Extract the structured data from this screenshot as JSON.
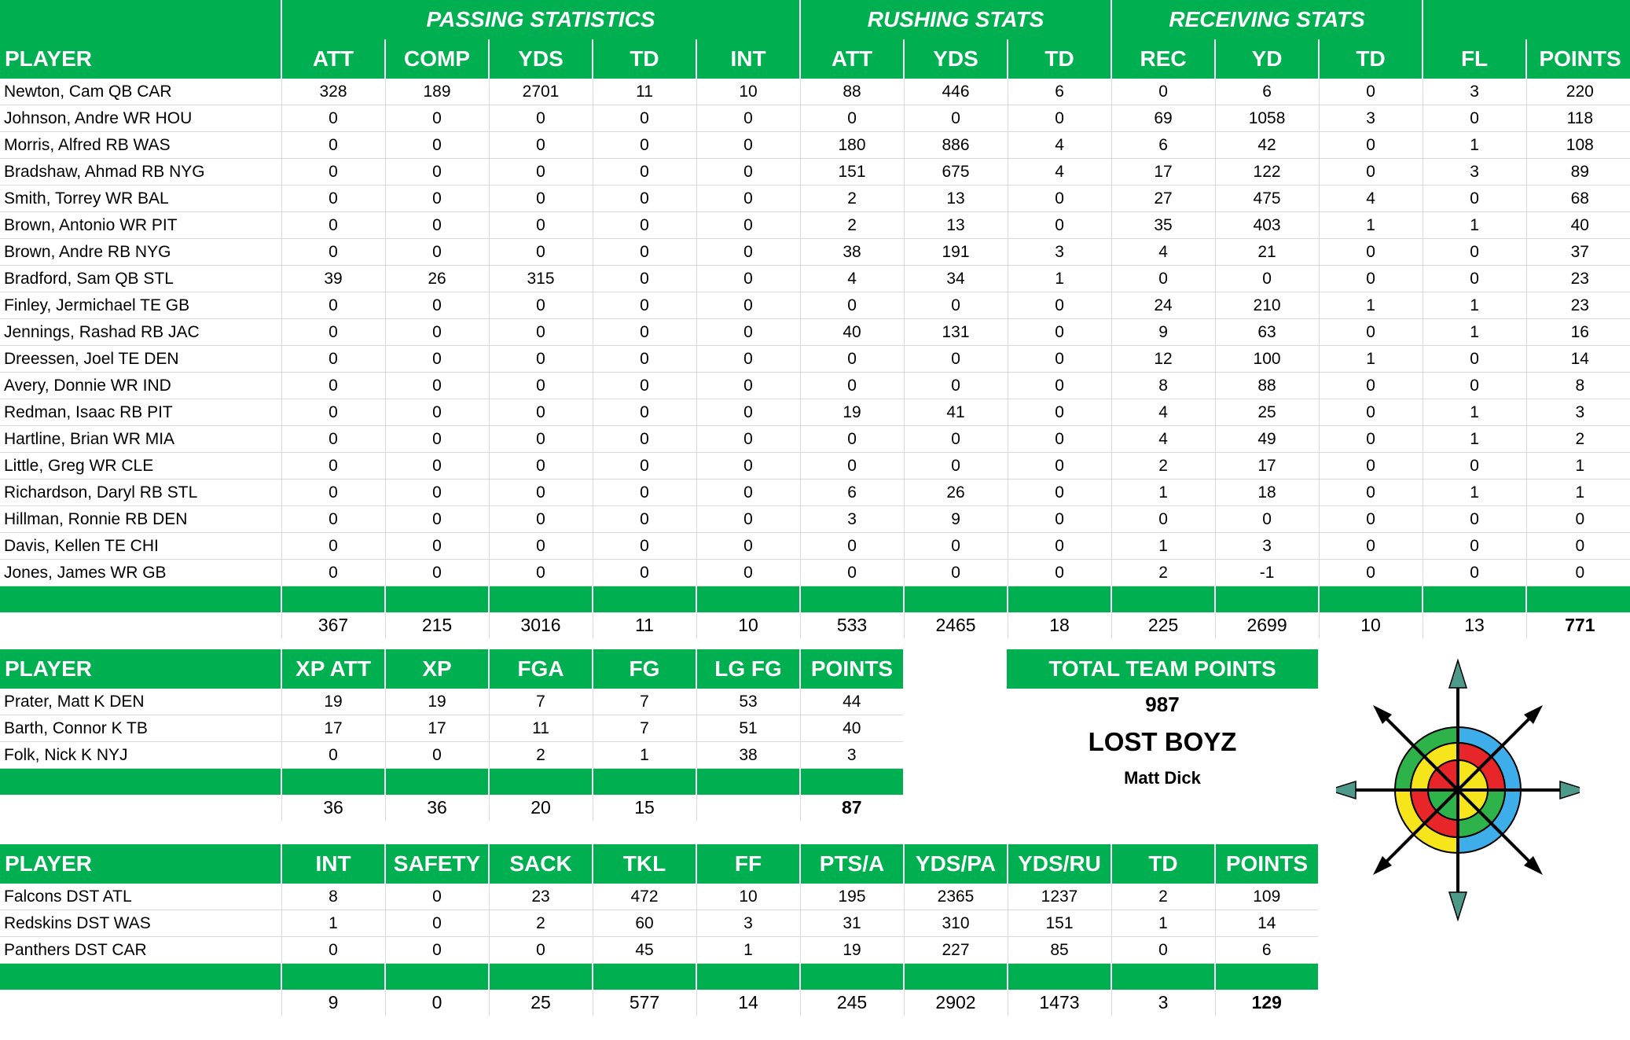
{
  "offense": {
    "section_titles": {
      "passing": "PASSING STATISTICS",
      "rushing": "RUSHING STATS",
      "receiving": "RECEIVING STATS"
    },
    "headers": [
      "PLAYER",
      "ATT",
      "COMP",
      "YDS",
      "TD",
      "INT",
      "ATT",
      "YDS",
      "TD",
      "REC",
      "YD",
      "TD",
      "FL",
      "POINTS"
    ],
    "rows": [
      [
        "Newton, Cam QB CAR",
        "328",
        "189",
        "2701",
        "11",
        "10",
        "88",
        "446",
        "6",
        "0",
        "6",
        "0",
        "3",
        "220"
      ],
      [
        "Johnson, Andre WR HOU",
        "0",
        "0",
        "0",
        "0",
        "0",
        "0",
        "0",
        "0",
        "69",
        "1058",
        "3",
        "0",
        "118"
      ],
      [
        "Morris, Alfred RB WAS",
        "0",
        "0",
        "0",
        "0",
        "0",
        "180",
        "886",
        "4",
        "6",
        "42",
        "0",
        "1",
        "108"
      ],
      [
        "Bradshaw, Ahmad RB NYG",
        "0",
        "0",
        "0",
        "0",
        "0",
        "151",
        "675",
        "4",
        "17",
        "122",
        "0",
        "3",
        "89"
      ],
      [
        "Smith, Torrey WR BAL",
        "0",
        "0",
        "0",
        "0",
        "0",
        "2",
        "13",
        "0",
        "27",
        "475",
        "4",
        "0",
        "68"
      ],
      [
        "Brown, Antonio WR PIT",
        "0",
        "0",
        "0",
        "0",
        "0",
        "2",
        "13",
        "0",
        "35",
        "403",
        "1",
        "1",
        "40"
      ],
      [
        "Brown, Andre RB NYG",
        "0",
        "0",
        "0",
        "0",
        "0",
        "38",
        "191",
        "3",
        "4",
        "21",
        "0",
        "0",
        "37"
      ],
      [
        "Bradford, Sam QB STL",
        "39",
        "26",
        "315",
        "0",
        "0",
        "4",
        "34",
        "1",
        "0",
        "0",
        "0",
        "0",
        "23"
      ],
      [
        "Finley, Jermichael TE GB",
        "0",
        "0",
        "0",
        "0",
        "0",
        "0",
        "0",
        "0",
        "24",
        "210",
        "1",
        "1",
        "23"
      ],
      [
        "Jennings, Rashad RB JAC",
        "0",
        "0",
        "0",
        "0",
        "0",
        "40",
        "131",
        "0",
        "9",
        "63",
        "0",
        "1",
        "16"
      ],
      [
        "Dreessen, Joel TE DEN",
        "0",
        "0",
        "0",
        "0",
        "0",
        "0",
        "0",
        "0",
        "12",
        "100",
        "1",
        "0",
        "14"
      ],
      [
        "Avery, Donnie WR IND",
        "0",
        "0",
        "0",
        "0",
        "0",
        "0",
        "0",
        "0",
        "8",
        "88",
        "0",
        "0",
        "8"
      ],
      [
        "Redman, Isaac RB PIT",
        "0",
        "0",
        "0",
        "0",
        "0",
        "19",
        "41",
        "0",
        "4",
        "25",
        "0",
        "1",
        "3"
      ],
      [
        "Hartline, Brian WR MIA",
        "0",
        "0",
        "0",
        "0",
        "0",
        "0",
        "0",
        "0",
        "4",
        "49",
        "0",
        "1",
        "2"
      ],
      [
        "Little, Greg WR CLE",
        "0",
        "0",
        "0",
        "0",
        "0",
        "0",
        "0",
        "0",
        "2",
        "17",
        "0",
        "0",
        "1"
      ],
      [
        "Richardson, Daryl RB STL",
        "0",
        "0",
        "0",
        "0",
        "0",
        "6",
        "26",
        "0",
        "1",
        "18",
        "0",
        "1",
        "1"
      ],
      [
        "Hillman, Ronnie RB DEN",
        "0",
        "0",
        "0",
        "0",
        "0",
        "3",
        "9",
        "0",
        "0",
        "0",
        "0",
        "0",
        "0"
      ],
      [
        "Davis, Kellen TE CHI",
        "0",
        "0",
        "0",
        "0",
        "0",
        "0",
        "0",
        "0",
        "1",
        "3",
        "0",
        "0",
        "0"
      ],
      [
        "Jones, James WR GB",
        "0",
        "0",
        "0",
        "0",
        "0",
        "0",
        "0",
        "0",
        "2",
        "-1",
        "0",
        "0",
        "0"
      ]
    ],
    "totals": [
      "",
      "367",
      "215",
      "3016",
      "11",
      "10",
      "533",
      "2465",
      "18",
      "225",
      "2699",
      "10",
      "13",
      "771"
    ]
  },
  "kicking": {
    "headers": [
      "PLAYER",
      "XP ATT",
      "XP",
      "FGA",
      "FG",
      "LG FG",
      "POINTS"
    ],
    "rows": [
      [
        "Prater, Matt K DEN",
        "19",
        "19",
        "7",
        "7",
        "53",
        "44"
      ],
      [
        "Barth, Connor K TB",
        "17",
        "17",
        "11",
        "7",
        "51",
        "40"
      ],
      [
        "Folk, Nick K NYJ",
        "0",
        "0",
        "2",
        "1",
        "38",
        "3"
      ]
    ],
    "totals": [
      "",
      "36",
      "36",
      "20",
      "15",
      "",
      "87"
    ]
  },
  "defense": {
    "headers": [
      "PLAYER",
      "INT",
      "SAFETY",
      "SACK",
      "TKL",
      "FF",
      "PTS/A",
      "YDS/PA",
      "YDS/RU",
      "TD",
      "POINTS"
    ],
    "rows": [
      [
        "Falcons DST ATL",
        "8",
        "0",
        "23",
        "472",
        "10",
        "195",
        "2365",
        "1237",
        "2",
        "109"
      ],
      [
        "Redskins DST WAS",
        "1",
        "0",
        "2",
        "60",
        "3",
        "31",
        "310",
        "151",
        "1",
        "14"
      ],
      [
        "Panthers DST CAR",
        "0",
        "0",
        "0",
        "45",
        "1",
        "19",
        "227",
        "85",
        "0",
        "6"
      ]
    ],
    "totals": [
      "",
      "9",
      "0",
      "25",
      "577",
      "14",
      "245",
      "2902",
      "1473",
      "3",
      "129"
    ]
  },
  "team": {
    "total_label": "TOTAL TEAM POINTS",
    "total_points": "987",
    "name": "LOST BOYZ",
    "owner": "Matt Dick"
  },
  "colors": {
    "header_green": "#00b050",
    "grid": "#d9d9d9"
  },
  "logo": {
    "icon": "compass-rose-icon"
  }
}
